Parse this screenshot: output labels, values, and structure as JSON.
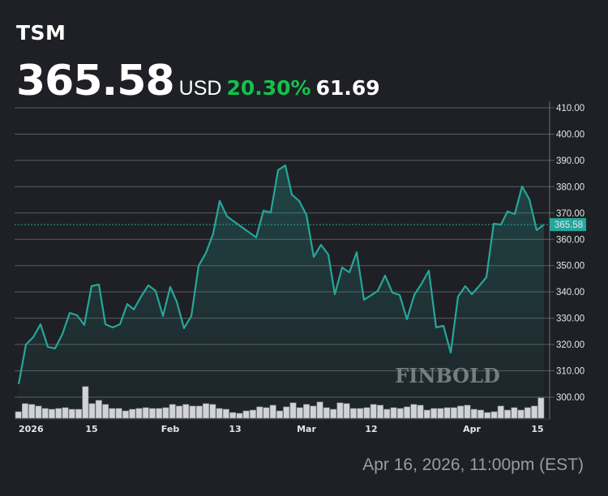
{
  "header": {
    "ticker": "TSM",
    "price": "365.58",
    "currency": "USD",
    "change_pct": "20.30%",
    "change_abs": "61.69"
  },
  "colors": {
    "background": "#1e2025",
    "line": "#26a69a",
    "positive": "#12c24a",
    "volume": "#d1d3da",
    "price_label_bg": "#26a69a"
  },
  "watermark": "FINBOLD",
  "timestamp": "Apr 16, 2026, 11:00pm (EST)",
  "price_label": "365.58",
  "chart_data": {
    "type": "line",
    "title": "TSM",
    "xlabel": "",
    "ylabel": "USD",
    "ylim": [
      292,
      412
    ],
    "grid": true,
    "y_ticks": [
      "410.00",
      "400.00",
      "390.00",
      "380.00",
      "370.00",
      "360.00",
      "350.00",
      "340.00",
      "330.00",
      "320.00",
      "310.00",
      "300.00"
    ],
    "x_ticks": [
      {
        "label": "2026",
        "x": 23
      },
      {
        "label": "15",
        "x": 113
      },
      {
        "label": "Feb",
        "x": 210
      },
      {
        "label": "13",
        "x": 290
      },
      {
        "label": "Mar",
        "x": 378
      },
      {
        "label": "12",
        "x": 458
      },
      {
        "label": "Apr",
        "x": 582
      },
      {
        "label": "15",
        "x": 663
      }
    ],
    "last_price": 365.58,
    "series": [
      {
        "name": "Price",
        "x": [
          23,
          32,
          41,
          50,
          59,
          68,
          77,
          86,
          95,
          104,
          113,
          122,
          130,
          139,
          148,
          157,
          165,
          174,
          183,
          192,
          201,
          210,
          218,
          227,
          236,
          245,
          254,
          263,
          271,
          280,
          316,
          325,
          334,
          343,
          352,
          360,
          369,
          378,
          387,
          396,
          405,
          413,
          422,
          431,
          440,
          449,
          466,
          475,
          484,
          493,
          502,
          511,
          520,
          529,
          538,
          547,
          556,
          565,
          574,
          582,
          591,
          600,
          609,
          618,
          626,
          635,
          644,
          653,
          662,
          671
        ],
        "values": [
          304.9,
          320.0,
          322.8,
          327.7,
          319.1,
          318.5,
          324.0,
          332.0,
          331.1,
          327.4,
          342.2,
          342.8,
          327.7,
          326.5,
          327.7,
          335.4,
          333.3,
          338.2,
          342.5,
          340.4,
          330.8,
          341.9,
          336.3,
          326.2,
          330.8,
          349.9,
          354.8,
          362.2,
          374.6,
          368.7,
          360.7,
          370.9,
          370.2,
          386.3,
          388.1,
          377.0,
          374.6,
          369.3,
          353.3,
          357.9,
          354.2,
          339.1,
          349.3,
          347.4,
          355.1,
          337.0,
          340.4,
          346.2,
          339.7,
          338.8,
          329.6,
          338.8,
          343.1,
          348.1,
          326.5,
          327.1,
          316.9,
          338.2,
          342.2,
          339.1,
          342.2,
          345.6,
          365.9,
          365.6,
          370.6,
          369.6,
          380.1,
          375.2,
          363.5,
          365.6
        ]
      },
      {
        "name": "Volume",
        "relative_heights": [
          8,
          18,
          17,
          15,
          12,
          11,
          12,
          13,
          11,
          11,
          39,
          18,
          22,
          17,
          12,
          12,
          9,
          11,
          12,
          13,
          12,
          12,
          13,
          17,
          15,
          17,
          15,
          15,
          18,
          17,
          12,
          11,
          7,
          6,
          9,
          10,
          14,
          13,
          16,
          9,
          14,
          19,
          13,
          17,
          15,
          20,
          13,
          11,
          19,
          18,
          12,
          12,
          13,
          17,
          16,
          11,
          13,
          12,
          14,
          17,
          16,
          10,
          12,
          12,
          13,
          13,
          15,
          16,
          11,
          10,
          7,
          8,
          15,
          10,
          13,
          10,
          13,
          15,
          25
        ]
      }
    ]
  }
}
